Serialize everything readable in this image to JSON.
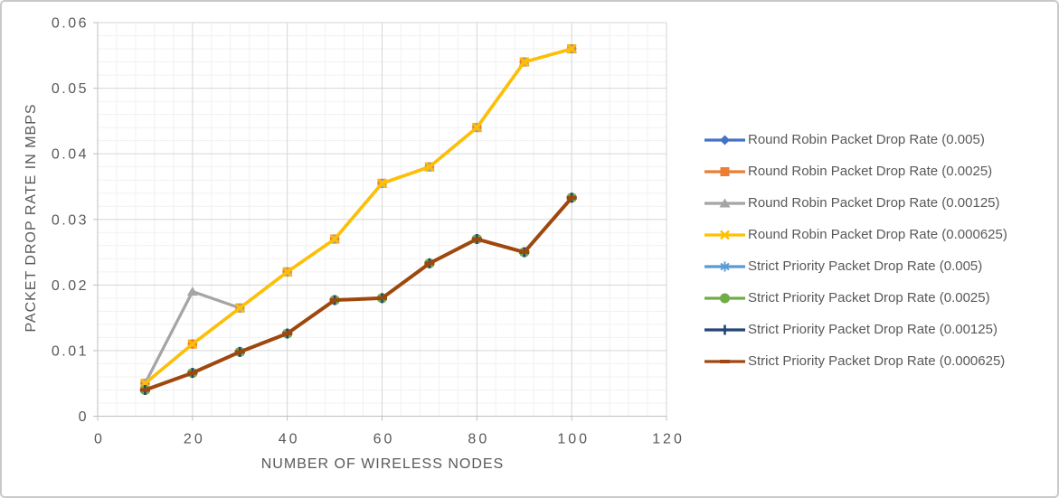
{
  "chart_data": {
    "type": "line",
    "title": "",
    "xlabel": "NUMBER OF WIRELESS NODES",
    "ylabel": "PACKET DROP RATE IN MBPS",
    "xlim": [
      0,
      120
    ],
    "ylim": [
      0,
      0.06
    ],
    "x_major_unit": 20,
    "x_minor_unit": 4,
    "y_major_unit": 0.01,
    "y_minor_unit": 0.002,
    "grid": "major+minor",
    "legend_position": "right",
    "x_tick_values": [
      0,
      20,
      40,
      60,
      80,
      100,
      120
    ],
    "x_tick_labels": [
      "0",
      "20",
      "40",
      "60",
      "80",
      "100",
      "120"
    ],
    "y_tick_values": [
      0,
      0.01,
      0.02,
      0.03,
      0.04,
      0.05,
      0.06
    ],
    "y_tick_labels": [
      "0",
      "0.01",
      "0.02",
      "0.03",
      "0.04",
      "0.05",
      "0.06"
    ],
    "x": [
      10,
      20,
      30,
      40,
      50,
      60,
      70,
      80,
      90,
      100
    ],
    "series": [
      {
        "name": "Round Robin Packet Drop Rate (0.005)",
        "color": "#4472C4",
        "marker": "diamond-marker-icon",
        "values": [
          0.005,
          0.011,
          0.0165,
          0.022,
          0.027,
          0.0355,
          0.038,
          0.044,
          0.054,
          0.056
        ]
      },
      {
        "name": "Round Robin Packet Drop Rate (0.0025)",
        "color": "#ED7D31",
        "marker": "square-marker-icon",
        "values": [
          0.005,
          0.011,
          0.0165,
          0.022,
          0.027,
          0.0355,
          0.038,
          0.044,
          0.054,
          0.056
        ]
      },
      {
        "name": "Round Robin Packet Drop Rate (0.00125)",
        "color": "#A5A5A5",
        "marker": "triangle-marker-icon",
        "values": [
          0.005,
          0.019,
          0.0165,
          0.022,
          0.027,
          0.0355,
          0.038,
          0.044,
          0.054,
          0.056
        ]
      },
      {
        "name": "Round Robin Packet Drop Rate (0.000625)",
        "color": "#FFC000",
        "marker": "x-marker-icon",
        "values": [
          0.005,
          0.011,
          0.0165,
          0.022,
          0.027,
          0.0355,
          0.038,
          0.044,
          0.054,
          0.056
        ]
      },
      {
        "name": "Strict Priority Packet Drop Rate (0.005)",
        "color": "#5B9BD5",
        "marker": "asterisk-marker-icon",
        "values": [
          0.004,
          0.0066,
          0.0098,
          0.0126,
          0.0177,
          0.018,
          0.0233,
          0.027,
          0.025,
          0.0333
        ]
      },
      {
        "name": "Strict Priority Packet Drop Rate (0.0025)",
        "color": "#70AD47",
        "marker": "circle-marker-icon",
        "values": [
          0.004,
          0.0066,
          0.0098,
          0.0126,
          0.0177,
          0.018,
          0.0233,
          0.027,
          0.025,
          0.0333
        ]
      },
      {
        "name": "Strict Priority Packet Drop Rate (0.00125)",
        "color": "#264478",
        "marker": "plus-marker-icon",
        "values": [
          0.004,
          0.0066,
          0.0098,
          0.0126,
          0.0177,
          0.018,
          0.0233,
          0.027,
          0.025,
          0.0333
        ]
      },
      {
        "name": "Strict Priority Packet Drop Rate (0.000625)",
        "color": "#9E480E",
        "marker": "dash-marker-icon",
        "values": [
          0.004,
          0.0066,
          0.0098,
          0.0126,
          0.0177,
          0.018,
          0.0233,
          0.027,
          0.025,
          0.0333
        ]
      }
    ],
    "colors": {
      "tick_label": "#595959",
      "axis_title": "#595959",
      "legend_text": "#595959",
      "axis_line": "#BFBFBF",
      "grid_major": "#D6D6D6",
      "grid_minor": "#F1F1F1",
      "background": "#FFFFFF",
      "frame_border": "#C9C9C9"
    }
  }
}
